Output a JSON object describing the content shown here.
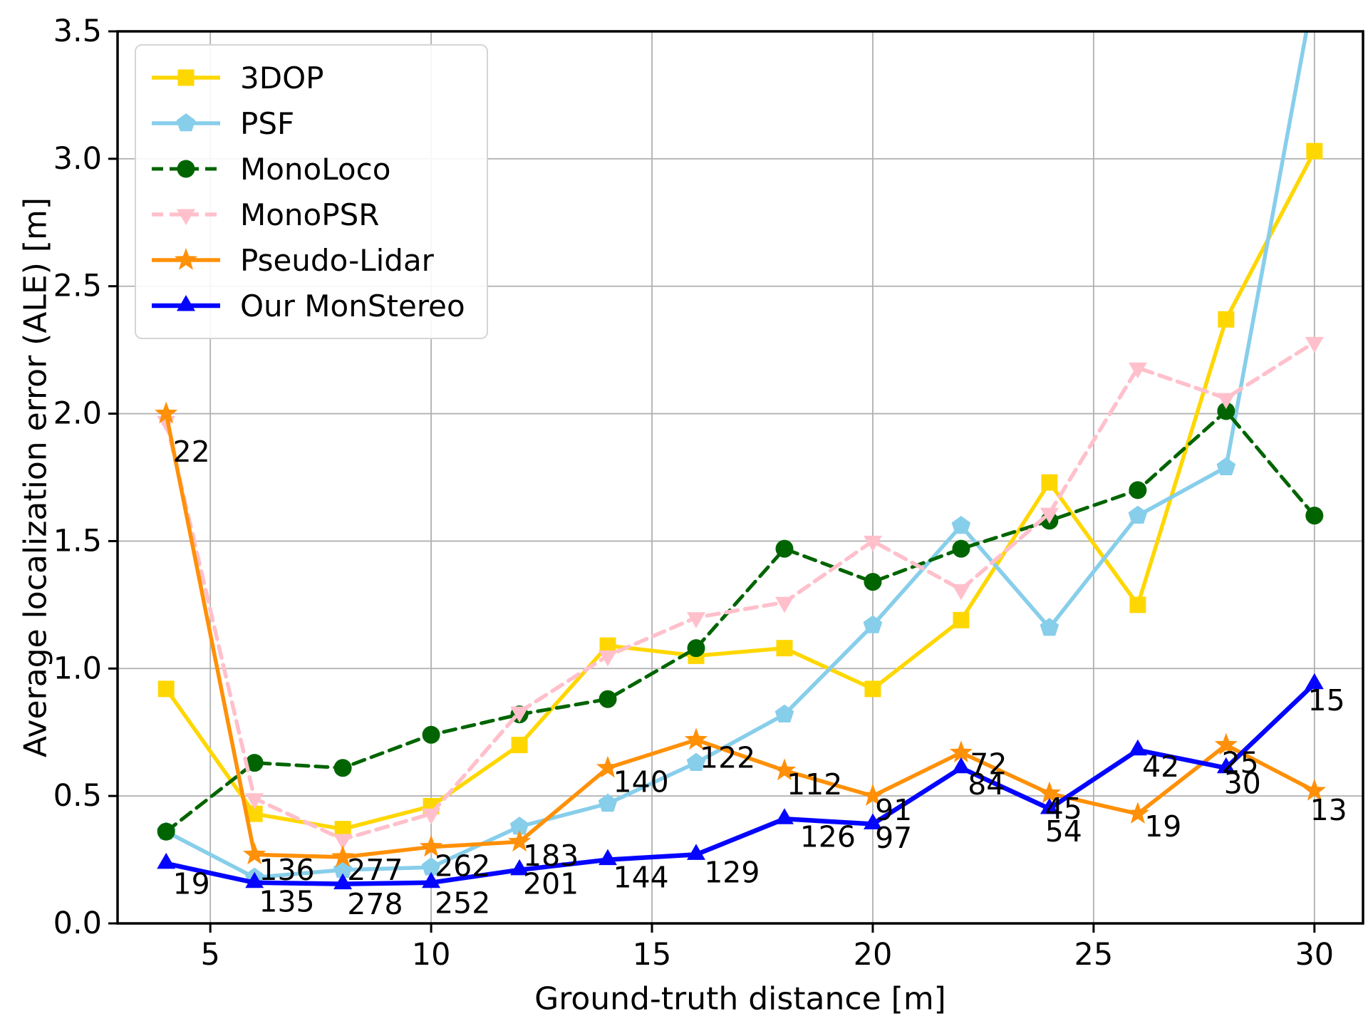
{
  "figure": {
    "xlabel": "Ground-truth distance [m]",
    "ylabel": "Average localization error (ALE) [m]"
  },
  "chart_data": {
    "type": "line",
    "title": "",
    "xlabel": "Ground-truth distance [m]",
    "ylabel": "Average localization error (ALE) [m]",
    "x": [
      4,
      6,
      8,
      10,
      12,
      14,
      16,
      18,
      20,
      22,
      24,
      26,
      28,
      30
    ],
    "xlim": [
      2.9,
      31.1
    ],
    "ylim": [
      0,
      3.5
    ],
    "xticks": [
      5,
      10,
      15,
      20,
      25,
      30
    ],
    "xtick_labels": [
      "5",
      "10",
      "15",
      "20",
      "25",
      "30"
    ],
    "yticks": [
      0,
      0.5,
      1,
      1.5,
      2,
      2.5,
      3,
      3.5
    ],
    "ytick_labels": [
      "0.0",
      "0.5",
      "1.0",
      "1.5",
      "2.0",
      "2.5",
      "3.0",
      "3.5"
    ],
    "grid": true,
    "legend_position": "upper-left",
    "series": [
      {
        "name": "3DOP",
        "color": "#FFD700",
        "dash": "solid",
        "marker": "square",
        "width": 5.5,
        "values": [
          0.92,
          0.43,
          0.37,
          0.46,
          0.7,
          1.09,
          1.05,
          1.08,
          0.92,
          1.19,
          1.73,
          1.25,
          2.37,
          3.03
        ]
      },
      {
        "name": "PSF",
        "color": "#87CEEB",
        "dash": "solid",
        "marker": "pentagon",
        "width": 5.5,
        "values": [
          0.36,
          0.18,
          0.21,
          0.22,
          0.38,
          0.47,
          0.63,
          0.82,
          1.17,
          1.56,
          1.16,
          1.6,
          1.79,
          3.67
        ]
      },
      {
        "name": "MonoLoco",
        "color": "#006400",
        "dash": "dashed",
        "marker": "circle",
        "width": 5,
        "values": [
          0.36,
          0.63,
          0.61,
          0.74,
          0.82,
          0.88,
          1.08,
          1.47,
          1.34,
          1.47,
          1.58,
          1.7,
          2.01,
          1.6
        ]
      },
      {
        "name": "MonoPSR",
        "color": "#FFC0CB",
        "dash": "dashed",
        "marker": "triangle-down",
        "width": 5.5,
        "values": [
          1.97,
          0.49,
          0.33,
          0.43,
          0.83,
          1.05,
          1.2,
          1.26,
          1.5,
          1.31,
          1.61,
          2.18,
          2.06,
          2.28
        ]
      },
      {
        "name": "Pseudo-Lidar",
        "color": "#FF9008",
        "dash": "solid",
        "marker": "star",
        "width": 5.5,
        "values": [
          2.0,
          0.27,
          0.26,
          0.3,
          0.32,
          0.61,
          0.72,
          0.6,
          0.5,
          0.67,
          0.51,
          0.43,
          0.7,
          0.52
        ]
      },
      {
        "name": "Our MonStereo",
        "color": "#0505FF",
        "dash": "solid",
        "marker": "triangle-up",
        "width": 6.5,
        "values": [
          0.235,
          0.16,
          0.155,
          0.16,
          0.21,
          0.25,
          0.27,
          0.41,
          0.39,
          0.61,
          0.45,
          0.68,
          0.61,
          0.94
        ]
      }
    ],
    "annotations": [
      {
        "text": "22",
        "x": 4.15,
        "y": 1.85
      },
      {
        "text": "19",
        "x": 4.15,
        "y": 0.155
      },
      {
        "text": "136",
        "x": 6.1,
        "y": 0.21
      },
      {
        "text": "135",
        "x": 6.1,
        "y": 0.085
      },
      {
        "text": "277",
        "x": 8.1,
        "y": 0.21
      },
      {
        "text": "278",
        "x": 8.1,
        "y": 0.075
      },
      {
        "text": "262",
        "x": 10.08,
        "y": 0.225
      },
      {
        "text": "252",
        "x": 10.08,
        "y": 0.08
      },
      {
        "text": "183",
        "x": 12.08,
        "y": 0.265
      },
      {
        "text": "201",
        "x": 12.08,
        "y": 0.155
      },
      {
        "text": "140",
        "x": 14.12,
        "y": 0.555
      },
      {
        "text": "144",
        "x": 14.12,
        "y": 0.18
      },
      {
        "text": "122",
        "x": 16.08,
        "y": 0.65
      },
      {
        "text": "129",
        "x": 16.18,
        "y": 0.2
      },
      {
        "text": "112",
        "x": 18.05,
        "y": 0.545
      },
      {
        "text": "126",
        "x": 18.35,
        "y": 0.34
      },
      {
        "text": "91",
        "x": 20.05,
        "y": 0.445
      },
      {
        "text": "97",
        "x": 20.05,
        "y": 0.335
      },
      {
        "text": "72",
        "x": 22.2,
        "y": 0.625
      },
      {
        "text": "84",
        "x": 22.15,
        "y": 0.545
      },
      {
        "text": "45",
        "x": 23.9,
        "y": 0.45
      },
      {
        "text": "54",
        "x": 23.9,
        "y": 0.36
      },
      {
        "text": "42",
        "x": 26.1,
        "y": 0.615
      },
      {
        "text": "19",
        "x": 26.15,
        "y": 0.38
      },
      {
        "text": "25",
        "x": 27.9,
        "y": 0.63
      },
      {
        "text": "30",
        "x": 27.95,
        "y": 0.55
      },
      {
        "text": "15",
        "x": 29.85,
        "y": 0.875
      },
      {
        "text": "13",
        "x": 29.9,
        "y": 0.445
      }
    ],
    "styles": {
      "grid_color": "#b0b0b0",
      "spine_color": "#000000",
      "annotation_color": "#000000",
      "background": "#ffffff"
    }
  }
}
